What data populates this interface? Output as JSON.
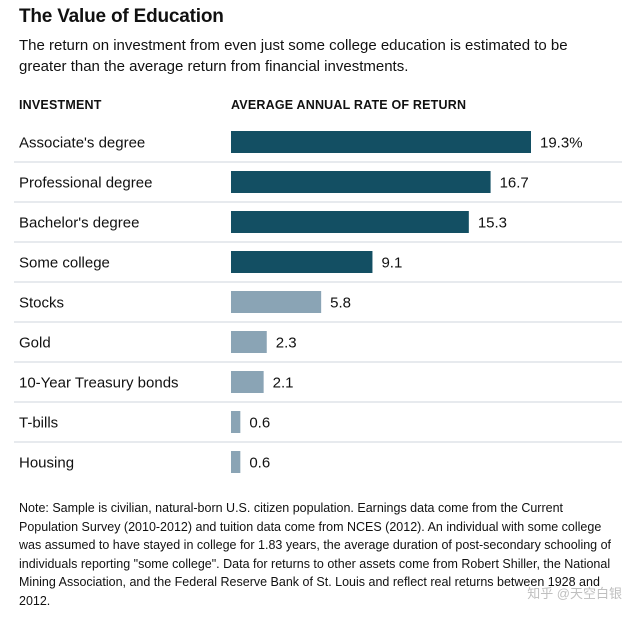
{
  "title": "The Value of Education",
  "subtitle": "The return on investment from even just some college education is estimated to be greater than the average return from financial investments.",
  "col_headers": {
    "investment": "INVESTMENT",
    "rate": "AVERAGE ANNUAL RATE OF RETURN"
  },
  "colors": {
    "education": "#134f63",
    "financial": "#8aa4b5",
    "divider": "#cfd6dc"
  },
  "chart_data": {
    "type": "bar",
    "orientation": "horizontal",
    "title": "The Value of Education",
    "xlabel": "AVERAGE ANNUAL RATE OF RETURN",
    "ylabel": "INVESTMENT",
    "xlim": [
      0,
      20
    ],
    "grid": false,
    "categories": [
      "Associate's degree",
      "Professional degree",
      "Bachelor's degree",
      "Some college",
      "Stocks",
      "Gold",
      "10-Year Treasury bonds",
      "T-bills",
      "Housing"
    ],
    "values": [
      19.3,
      16.7,
      15.3,
      9.1,
      5.8,
      2.3,
      2.1,
      0.6,
      0.6
    ],
    "value_labels": [
      "19.3%",
      "16.7",
      "15.3",
      "9.1",
      "5.8",
      "2.3",
      "2.1",
      "0.6",
      "0.6"
    ],
    "groups": [
      "education",
      "education",
      "education",
      "education",
      "financial",
      "financial",
      "financial",
      "financial",
      "financial"
    ]
  },
  "note": "Note: Sample is civilian, natural-born U.S. citizen population. Earnings data come from the Current Population Survey (2010-2012) and tuition data come from NCES (2012). An individual with some college was assumed to have stayed in college for 1.83 years, the average duration of post-secondary schooling of individuals reporting \"some college\". Data for returns to other assets come from Robert Shiller, the National Mining Association, and the Federal Reserve Bank of St. Louis and reflect real returns between 1928 and 2012.",
  "watermark": "知乎 @天空白银"
}
